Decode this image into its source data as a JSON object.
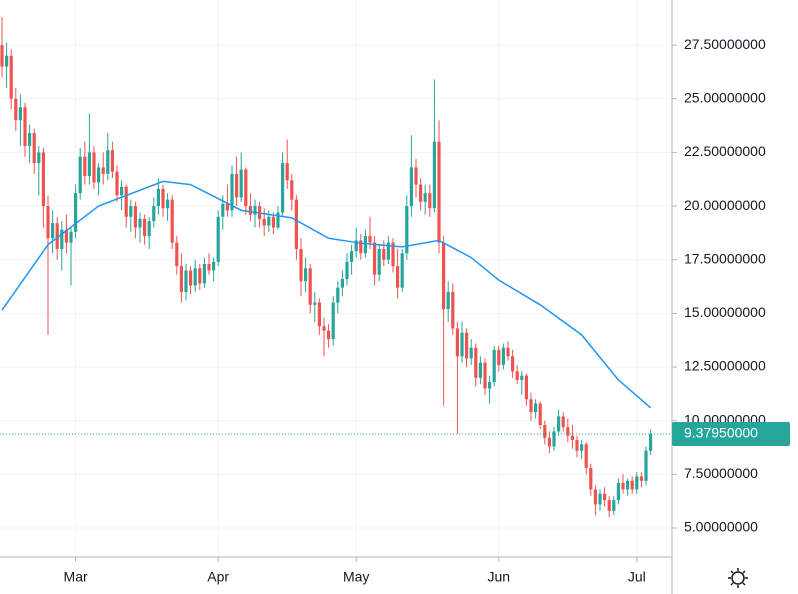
{
  "chart_data": {
    "type": "candlestick",
    "up_color": "#26a69a",
    "down_color": "#ef5350",
    "ylim": [
      3.65,
      29.6
    ],
    "yticks": [
      {
        "value": 5,
        "label": "5.00000000"
      },
      {
        "value": 7.5,
        "label": "7.50000000"
      },
      {
        "value": 10,
        "label": "10.00000000"
      },
      {
        "value": 12.5,
        "label": "12.50000000"
      },
      {
        "value": 15,
        "label": "15.00000000"
      },
      {
        "value": 17.5,
        "label": "17.50000000"
      },
      {
        "value": 20,
        "label": "20.00000000"
      },
      {
        "value": 22.5,
        "label": "22.50000000"
      },
      {
        "value": 25,
        "label": "25.00000000"
      },
      {
        "value": 27.5,
        "label": "27.50000000"
      }
    ],
    "xticks": [
      {
        "value": 16,
        "label": "Mar"
      },
      {
        "value": 47,
        "label": "Apr"
      },
      {
        "value": 77,
        "label": "May"
      },
      {
        "value": 108,
        "label": "Jun"
      },
      {
        "value": 138,
        "label": "Jul"
      }
    ],
    "grid": true,
    "last_price": {
      "value": 9.3795,
      "label": "9.37950000"
    },
    "candles": [
      [
        27.5,
        28.8,
        26.0,
        26.5
      ],
      [
        26.5,
        27.6,
        25.5,
        27.0
      ],
      [
        27.0,
        27.3,
        24.5,
        25.0
      ],
      [
        25.0,
        25.5,
        23.5,
        24.0
      ],
      [
        24.0,
        25.2,
        22.8,
        24.6
      ],
      [
        24.6,
        24.8,
        22.3,
        22.8
      ],
      [
        22.8,
        23.8,
        22.0,
        23.4
      ],
      [
        23.4,
        23.6,
        21.5,
        22.0
      ],
      [
        22.0,
        22.8,
        20.5,
        22.5
      ],
      [
        22.5,
        22.7,
        19.0,
        20.0
      ],
      [
        20.0,
        20.5,
        14.0,
        18.5
      ],
      [
        18.5,
        19.8,
        17.8,
        19.2
      ],
      [
        19.2,
        19.5,
        17.5,
        18.0
      ],
      [
        18.0,
        19.3,
        17.0,
        18.9
      ],
      [
        18.9,
        19.6,
        17.8,
        18.3
      ],
      [
        18.3,
        19.0,
        16.3,
        18.8
      ],
      [
        18.8,
        21.0,
        18.5,
        20.6
      ],
      [
        20.6,
        22.7,
        20.3,
        22.3
      ],
      [
        22.3,
        23.0,
        21.0,
        21.4
      ],
      [
        21.4,
        24.3,
        21.0,
        22.5
      ],
      [
        22.5,
        22.8,
        20.8,
        21.1
      ],
      [
        21.1,
        22.0,
        20.5,
        21.8
      ],
      [
        21.8,
        22.5,
        21.0,
        21.5
      ],
      [
        21.5,
        23.4,
        21.2,
        22.6
      ],
      [
        22.6,
        23.0,
        21.3,
        21.6
      ],
      [
        21.6,
        21.9,
        20.2,
        20.5
      ],
      [
        20.5,
        21.2,
        19.8,
        20.9
      ],
      [
        20.9,
        21.0,
        19.0,
        19.5
      ],
      [
        19.5,
        20.3,
        18.8,
        20.0
      ],
      [
        20.0,
        20.2,
        18.5,
        19.0
      ],
      [
        19.0,
        19.7,
        18.3,
        19.4
      ],
      [
        19.4,
        19.6,
        18.2,
        18.6
      ],
      [
        18.6,
        19.5,
        18.0,
        19.3
      ],
      [
        19.3,
        20.4,
        19.0,
        20.0
      ],
      [
        20.0,
        21.3,
        19.6,
        20.8
      ],
      [
        20.8,
        21.0,
        19.5,
        19.9
      ],
      [
        19.9,
        20.6,
        19.3,
        20.3
      ],
      [
        20.3,
        20.5,
        18.0,
        18.3
      ],
      [
        18.3,
        18.6,
        16.8,
        17.2
      ],
      [
        17.2,
        17.8,
        15.5,
        16.0
      ],
      [
        16.0,
        17.3,
        15.6,
        17.0
      ],
      [
        17.0,
        17.2,
        15.9,
        16.3
      ],
      [
        16.3,
        17.5,
        16.0,
        17.1
      ],
      [
        17.1,
        17.3,
        16.1,
        16.4
      ],
      [
        16.4,
        17.6,
        16.2,
        17.3
      ],
      [
        17.3,
        17.8,
        16.8,
        17.0
      ],
      [
        17.0,
        17.6,
        16.5,
        17.4
      ],
      [
        17.4,
        19.8,
        17.2,
        19.5
      ],
      [
        19.5,
        20.5,
        18.9,
        20.1
      ],
      [
        20.1,
        21.0,
        19.5,
        19.8
      ],
      [
        19.8,
        21.9,
        19.5,
        21.5
      ],
      [
        21.5,
        22.3,
        20.0,
        20.4
      ],
      [
        20.4,
        22.5,
        20.2,
        21.7
      ],
      [
        21.7,
        21.8,
        19.6,
        20.0
      ],
      [
        20.0,
        20.6,
        19.3,
        19.6
      ],
      [
        19.6,
        20.3,
        19.0,
        20.0
      ],
      [
        20.0,
        20.2,
        19.0,
        19.4
      ],
      [
        19.4,
        19.9,
        18.6,
        19.1
      ],
      [
        19.1,
        19.8,
        18.8,
        19.5
      ],
      [
        19.5,
        19.7,
        18.7,
        19.0
      ],
      [
        19.0,
        20.0,
        18.9,
        19.7
      ],
      [
        19.7,
        22.5,
        19.5,
        22.0
      ],
      [
        22.0,
        23.1,
        20.8,
        21.2
      ],
      [
        21.2,
        21.5,
        19.8,
        20.3
      ],
      [
        20.3,
        20.5,
        17.5,
        18.0
      ],
      [
        18.0,
        18.5,
        15.8,
        16.5
      ],
      [
        16.5,
        17.6,
        16.0,
        17.1
      ],
      [
        17.1,
        17.3,
        15.0,
        15.4
      ],
      [
        15.4,
        16.0,
        14.6,
        15.5
      ],
      [
        15.5,
        15.7,
        14.0,
        14.4
      ],
      [
        14.4,
        14.8,
        13.0,
        14.2
      ],
      [
        14.2,
        14.5,
        13.4,
        13.8
      ],
      [
        13.8,
        15.8,
        13.5,
        15.5
      ],
      [
        15.5,
        16.5,
        15.0,
        16.2
      ],
      [
        16.2,
        17.0,
        15.8,
        16.6
      ],
      [
        16.6,
        17.8,
        16.3,
        17.4
      ],
      [
        17.4,
        18.2,
        16.8,
        17.9
      ],
      [
        17.9,
        19.0,
        17.6,
        18.4
      ],
      [
        18.4,
        18.7,
        17.5,
        17.8
      ],
      [
        17.8,
        18.9,
        17.6,
        18.6
      ],
      [
        18.6,
        19.5,
        18.0,
        18.3
      ],
      [
        18.3,
        18.6,
        16.3,
        16.8
      ],
      [
        16.8,
        18.2,
        16.5,
        18.0
      ],
      [
        18.0,
        18.4,
        17.2,
        17.5
      ],
      [
        17.5,
        18.6,
        17.3,
        18.3
      ],
      [
        18.3,
        18.5,
        16.9,
        17.2
      ],
      [
        17.2,
        18.0,
        15.7,
        16.2
      ],
      [
        16.2,
        18.0,
        16.0,
        17.8
      ],
      [
        17.8,
        20.5,
        17.5,
        20.0
      ],
      [
        20.0,
        23.3,
        19.5,
        21.8
      ],
      [
        21.8,
        22.2,
        20.4,
        21.0
      ],
      [
        21.0,
        21.3,
        19.8,
        20.2
      ],
      [
        20.2,
        21.0,
        19.6,
        20.6
      ],
      [
        20.6,
        21.0,
        19.5,
        19.9
      ],
      [
        19.9,
        25.9,
        19.7,
        23.0
      ],
      [
        23.0,
        24.0,
        17.8,
        18.3
      ],
      [
        18.3,
        18.6,
        10.7,
        15.2
      ],
      [
        15.2,
        16.5,
        14.6,
        16.0
      ],
      [
        16.0,
        16.4,
        14.0,
        14.3
      ],
      [
        14.3,
        14.6,
        9.4,
        13.0
      ],
      [
        13.0,
        14.6,
        12.7,
        14.1
      ],
      [
        14.1,
        14.3,
        12.5,
        12.9
      ],
      [
        12.9,
        13.8,
        12.6,
        13.4
      ],
      [
        13.4,
        13.6,
        11.6,
        12.0
      ],
      [
        12.0,
        13.0,
        11.7,
        12.7
      ],
      [
        12.7,
        12.9,
        11.2,
        11.5
      ],
      [
        11.5,
        12.1,
        10.8,
        11.8
      ],
      [
        11.8,
        13.5,
        11.6,
        13.3
      ],
      [
        13.3,
        13.5,
        12.3,
        12.6
      ],
      [
        12.6,
        13.6,
        12.4,
        13.4
      ],
      [
        13.4,
        13.7,
        12.8,
        13.0
      ],
      [
        13.0,
        13.3,
        12.0,
        12.3
      ],
      [
        12.3,
        12.6,
        11.7,
        11.9
      ],
      [
        11.9,
        12.3,
        11.2,
        12.1
      ],
      [
        12.1,
        12.2,
        10.7,
        11.0
      ],
      [
        11.0,
        11.3,
        10.0,
        10.4
      ],
      [
        10.4,
        11.0,
        10.1,
        10.8
      ],
      [
        10.8,
        10.9,
        9.6,
        9.8
      ],
      [
        9.8,
        10.0,
        8.9,
        9.2
      ],
      [
        9.2,
        9.5,
        8.5,
        8.8
      ],
      [
        8.8,
        9.7,
        8.6,
        9.5
      ],
      [
        9.5,
        10.5,
        9.3,
        10.2
      ],
      [
        10.2,
        10.4,
        9.5,
        9.7
      ],
      [
        9.7,
        10.1,
        9.0,
        9.3
      ],
      [
        9.3,
        9.8,
        8.7,
        9.1
      ],
      [
        9.1,
        9.3,
        8.3,
        8.6
      ],
      [
        8.6,
        9.1,
        8.2,
        8.9
      ],
      [
        8.9,
        9.0,
        7.5,
        7.8
      ],
      [
        7.8,
        8.0,
        6.5,
        6.8
      ],
      [
        6.8,
        7.0,
        5.6,
        6.1
      ],
      [
        6.1,
        6.8,
        5.8,
        6.6
      ],
      [
        6.6,
        6.9,
        6.0,
        6.3
      ],
      [
        6.3,
        6.5,
        5.5,
        5.8
      ],
      [
        5.8,
        6.5,
        5.6,
        6.3
      ],
      [
        6.3,
        7.3,
        6.1,
        7.1
      ],
      [
        7.1,
        7.5,
        6.6,
        6.8
      ],
      [
        6.8,
        7.3,
        6.5,
        7.2
      ],
      [
        7.2,
        7.4,
        6.6,
        6.8
      ],
      [
        6.8,
        7.6,
        6.6,
        7.4
      ],
      [
        7.4,
        7.6,
        6.9,
        7.2
      ],
      [
        7.2,
        8.8,
        7.0,
        8.6
      ],
      [
        8.6,
        9.6,
        8.4,
        9.3795
      ]
    ],
    "ma": {
      "color": "#2196f3",
      "x": [
        0,
        10,
        21,
        35,
        41,
        52,
        63,
        71,
        78,
        87,
        95,
        102,
        108,
        117,
        126,
        134,
        141
      ],
      "values": [
        15.15,
        18.2,
        20.0,
        21.15,
        21.0,
        19.8,
        19.45,
        18.5,
        18.27,
        18.1,
        18.4,
        17.6,
        16.55,
        15.4,
        14.0,
        11.9,
        10.6
      ]
    }
  }
}
